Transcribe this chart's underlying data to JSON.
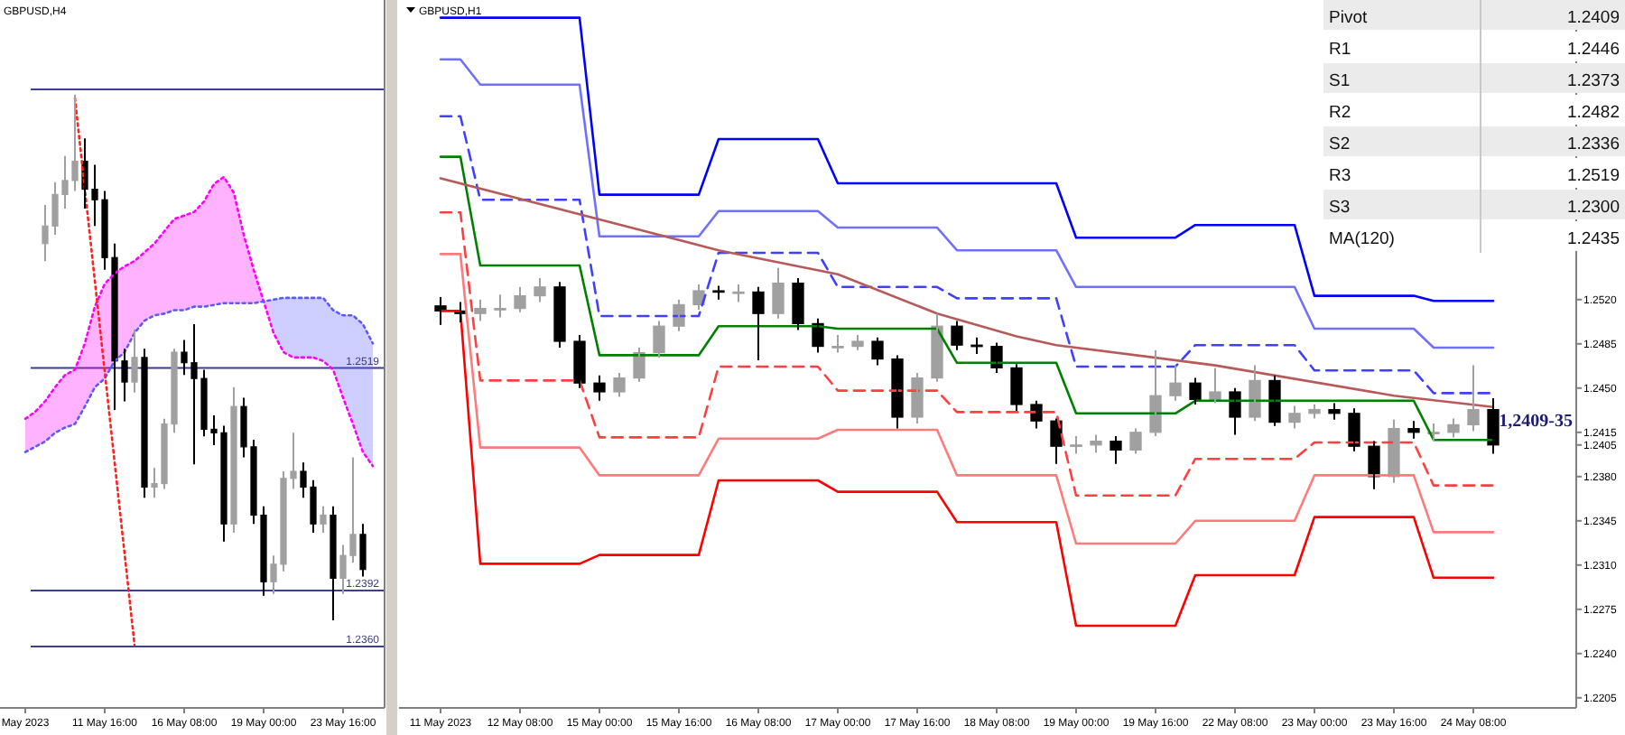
{
  "chart_data": [
    {
      "type": "candlestick",
      "title": "GBPUSD,H4",
      "tick_labels": "x",
      "ylim": [
        1.2325,
        1.2729
      ],
      "categories": [
        "May 2023",
        null,
        null,
        null,
        null,
        null,
        null,
        null,
        "11 May 16:00",
        null,
        null,
        null,
        null,
        null,
        null,
        null,
        "16 May 08:00",
        null,
        null,
        null,
        null,
        null,
        null,
        null,
        "19 May 00:00",
        null,
        null,
        null,
        null,
        null,
        null,
        null,
        "23 May 16:00",
        null,
        null,
        null
      ],
      "series": [
        {
          "type": "line",
          "color": "#ff00ff",
          "line_style": "dotted",
          "lower": [
            1.2471,
            1.2474,
            1.2477,
            1.2482,
            1.2485,
            1.2487,
            1.2497,
            1.2508,
            1.2513,
            1.2523,
            1.2528,
            1.2539,
            1.2546,
            1.2549,
            1.255,
            1.2552,
            1.2552,
            1.2554,
            1.2554,
            1.2555,
            1.2556,
            1.2556,
            1.2556,
            1.2556,
            1.2557,
            1.2558,
            1.2559,
            1.2559,
            1.2559,
            1.2559,
            1.2559,
            1.2552,
            1.2549,
            1.2549,
            1.2544,
            1.2533
          ],
          "upper": [
            1.249,
            1.2494,
            1.25,
            1.2508,
            1.2515,
            1.2518,
            1.2533,
            1.2554,
            1.2567,
            1.2573,
            1.2577,
            1.258,
            1.2585,
            1.259,
            1.2597,
            1.2604,
            1.2606,
            1.2608,
            1.2614,
            1.2624,
            1.2628,
            1.2619,
            1.2595,
            1.2575,
            1.2557,
            1.2539,
            1.2528,
            1.2525,
            1.2525,
            1.2525,
            1.2523,
            1.2518,
            1.2502,
            1.2487,
            1.2471,
            1.2463
          ],
          "values": [
            1.249,
            1.2494,
            1.25,
            1.2508,
            1.2515,
            1.2518,
            1.2533,
            1.2554,
            1.2567,
            1.2573,
            1.2577,
            1.258,
            1.2585,
            1.259,
            1.2597,
            1.2604,
            1.2606,
            1.2608,
            1.2614,
            1.2624,
            1.2628,
            1.2619,
            1.2595,
            1.2575,
            1.2557,
            1.2539,
            1.2528,
            1.2525,
            1.2525,
            1.2525,
            1.2523,
            1.2518,
            1.2502,
            1.2487,
            1.2471,
            1.2463
          ]
        },
        {
          "type": "line",
          "color": "#5a5aff",
          "line_style": "dotted",
          "values": [
            1.2471,
            1.2474,
            1.2477,
            1.2482,
            1.2485,
            1.2487,
            1.2497,
            1.2508,
            1.2513,
            1.2523,
            1.2528,
            1.2539,
            1.2546,
            1.2549,
            1.255,
            1.2552,
            1.2552,
            1.2554,
            1.2554,
            1.2555,
            1.2556,
            1.2556,
            1.2556,
            1.2556,
            1.2557,
            1.2558,
            1.2559,
            1.2559,
            1.2559,
            1.2559,
            1.2559,
            1.2552,
            1.2549,
            1.2549,
            1.2544,
            1.2533
          ]
        },
        {
          "type": "line",
          "color": "#ff2020",
          "line_style": "dotted",
          "values": [
            null,
            null,
            null,
            null,
            null,
            1.2673,
            null,
            null,
            null,
            null,
            null,
            1.2361,
            null,
            null,
            null,
            null,
            null,
            null,
            null,
            null,
            null,
            null,
            null,
            null,
            null,
            null,
            null,
            null,
            null,
            null,
            null,
            null,
            null,
            null,
            null,
            null
          ]
        },
        {
          "type": "candlestick",
          "colors": [
            null,
            null,
            "#a0a0a0",
            "#a0a0a0",
            "#a0a0a0",
            "#a0a0a0",
            "#000000",
            "#000000",
            "#000000",
            "#000000",
            "#000000",
            "#a0a0a0",
            "#000000",
            "#a0a0a0",
            "#a0a0a0",
            "#a0a0a0",
            "#000000",
            "#000000",
            "#000000",
            "#000000",
            "#000000",
            "#a0a0a0",
            "#000000",
            "#000000",
            "#000000",
            "#a0a0a0",
            "#a0a0a0",
            "#a0a0a0",
            "#000000",
            "#000000",
            "#a0a0a0",
            "#000000",
            "#a0a0a0",
            "#a0a0a0",
            "#000000",
            null
          ],
          "ohlc": [
            null,
            null,
            [
              1.259,
              1.2612,
              1.258,
              1.26
            ],
            [
              1.26,
              1.2625,
              1.2595,
              1.2618
            ],
            [
              1.2618,
              1.264,
              1.261,
              1.2626
            ],
            [
              1.2626,
              1.2675,
              1.262,
              1.2637
            ],
            [
              1.2637,
              1.265,
              1.261,
              1.2621
            ],
            [
              1.2621,
              1.2635,
              1.26,
              1.2615
            ],
            [
              1.2615,
              1.262,
              1.2575,
              1.2582
            ],
            [
              1.2582,
              1.259,
              1.2495,
              1.2523
            ],
            [
              1.2523,
              1.253,
              1.25,
              1.2511
            ],
            [
              1.2511,
              1.2541,
              1.2505,
              1.2525
            ],
            [
              1.2525,
              1.253,
              1.2445,
              1.2451
            ],
            [
              1.2451,
              1.2462,
              1.2445,
              1.2453
            ],
            [
              1.2453,
              1.249,
              1.245,
              1.2487
            ],
            [
              1.2487,
              1.253,
              1.2482,
              1.2528
            ],
            [
              1.2528,
              1.2535,
              1.2515,
              1.2522
            ],
            [
              1.2522,
              1.2544,
              1.2464,
              1.2513
            ],
            [
              1.2513,
              1.2518,
              1.248,
              1.2484
            ],
            [
              1.2484,
              1.2492,
              1.2475,
              1.2482
            ],
            [
              1.2482,
              1.2486,
              1.242,
              1.243
            ],
            [
              1.243,
              1.2508,
              1.2425,
              1.2497
            ],
            [
              1.2497,
              1.2502,
              1.2468,
              1.2474
            ],
            [
              1.2474,
              1.2478,
              1.243,
              1.2435
            ],
            [
              1.2435,
              1.244,
              1.2389,
              1.2397
            ],
            [
              1.2397,
              1.2412,
              1.239,
              1.2407
            ],
            [
              1.2407,
              1.246,
              1.2403,
              1.2456
            ],
            [
              1.2456,
              1.2482,
              1.245,
              1.246
            ],
            [
              1.246,
              1.2465,
              1.2445,
              1.2451
            ],
            [
              1.2451,
              1.2455,
              1.2425,
              1.243
            ],
            [
              1.243,
              1.244,
              1.2425,
              1.2435
            ],
            [
              1.2435,
              1.244,
              1.2375,
              1.2399
            ],
            [
              1.2399,
              1.2418,
              1.239,
              1.2412
            ],
            [
              1.2412,
              1.2468,
              1.2408,
              1.2424
            ],
            [
              1.2424,
              1.243,
              1.24,
              1.2404
            ],
            null
          ]
        }
      ],
      "ref_lines": [
        {
          "axis": "y",
          "value": 1.2678,
          "color": "#3c3c9a"
        },
        {
          "axis": "y",
          "value": 1.2519,
          "label": "1.2519",
          "color": "#3c3c9a"
        },
        {
          "axis": "y",
          "value": 1.2392,
          "label": "1.2392",
          "color": "#3c3c9a"
        },
        {
          "axis": "y",
          "value": 1.236,
          "label": "1.2360",
          "color": "#3c3c9a"
        }
      ]
    },
    {
      "type": "candlestick",
      "title": "GBPUSD,H1",
      "ylim": [
        1.2197,
        1.2757
      ],
      "yticks": [
        {
          "value": 1.2205,
          "label": "1.2205"
        },
        {
          "value": 1.224,
          "label": "1.2240"
        },
        {
          "value": 1.2275,
          "label": "1.2275"
        },
        {
          "value": 1.231,
          "label": "1.2310"
        },
        {
          "value": 1.2345,
          "label": "1.2345"
        },
        {
          "value": 1.238,
          "label": "1.2380"
        },
        {
          "value": 1.2405,
          "label": "1.2405"
        },
        {
          "value": 1.2415,
          "label": "1.2415"
        },
        {
          "value": 1.245,
          "label": "1.2450"
        },
        {
          "value": 1.2485,
          "label": "1.2485"
        },
        {
          "value": 1.252,
          "label": "1.2520"
        }
      ],
      "categories": [
        "11 May 2023",
        null,
        null,
        null,
        "12 May 08:00",
        null,
        null,
        null,
        "15 May 00:00",
        null,
        null,
        null,
        "15 May 16:00",
        null,
        null,
        null,
        "16 May 08:00",
        null,
        null,
        null,
        "17 May 00:00",
        null,
        null,
        null,
        "17 May 16:00",
        null,
        null,
        null,
        "18 May 08:00",
        null,
        null,
        null,
        "19 May 00:00",
        null,
        null,
        null,
        "19 May 16:00",
        null,
        null,
        null,
        "22 May 08:00",
        null,
        null,
        null,
        "23 May 00:00",
        null,
        null,
        null,
        "23 May 16:00",
        null,
        null,
        null,
        "24 May 08:00",
        null
      ],
      "series": [
        {
          "type": "line",
          "color": "#0000ff",
          "values": [
            1.2743,
            1.2743,
            1.2743,
            1.2743,
            1.2743,
            1.2743,
            1.2743,
            1.2743,
            1.2603,
            1.2603,
            1.2603,
            1.2603,
            1.2603,
            1.2603,
            1.2647,
            1.2647,
            1.2647,
            1.2647,
            1.2647,
            1.2647,
            1.2612,
            1.2612,
            1.2612,
            1.2612,
            1.2612,
            1.2612,
            1.2612,
            1.2612,
            1.2612,
            1.2612,
            1.2612,
            1.2612,
            1.2569,
            1.2569,
            1.2569,
            1.2569,
            1.2569,
            1.2569,
            1.2579,
            1.2579,
            1.2579,
            1.2579,
            1.2579,
            1.2579,
            1.2523,
            1.2523,
            1.2523,
            1.2523,
            1.2523,
            1.2523,
            1.2519,
            1.2519,
            1.2519,
            1.2519
          ]
        },
        {
          "type": "line",
          "color": "#7070ff",
          "values": [
            1.271,
            1.271,
            1.269,
            1.269,
            1.269,
            1.269,
            1.269,
            1.269,
            1.257,
            1.257,
            1.257,
            1.257,
            1.257,
            1.257,
            1.259,
            1.259,
            1.259,
            1.259,
            1.259,
            1.259,
            1.2577,
            1.2577,
            1.2577,
            1.2577,
            1.2577,
            1.2577,
            1.2559,
            1.2559,
            1.2559,
            1.2559,
            1.2559,
            1.2559,
            1.253,
            1.253,
            1.253,
            1.253,
            1.253,
            1.253,
            1.253,
            1.253,
            1.253,
            1.253,
            1.253,
            1.253,
            1.2497,
            1.2497,
            1.2497,
            1.2497,
            1.2497,
            1.2497,
            1.2482,
            1.2482,
            1.2482,
            1.2482
          ]
        },
        {
          "type": "line",
          "color": "#4040ff",
          "line_style": "dashed",
          "values": [
            1.2665,
            1.2665,
            1.2599,
            1.2599,
            1.2599,
            1.2599,
            1.2599,
            1.2599,
            1.2507,
            1.2507,
            1.2507,
            1.2507,
            1.2507,
            1.2507,
            1.2557,
            1.2557,
            1.2557,
            1.2557,
            1.2557,
            1.2557,
            1.253,
            1.253,
            1.253,
            1.253,
            1.253,
            1.253,
            1.2521,
            1.2521,
            1.2521,
            1.2521,
            1.2521,
            1.2521,
            1.2467,
            1.2467,
            1.2467,
            1.2467,
            1.2467,
            1.2467,
            1.2484,
            1.2484,
            1.2484,
            1.2484,
            1.2484,
            1.2484,
            1.2464,
            1.2464,
            1.2464,
            1.2464,
            1.2464,
            1.2464,
            1.2446,
            1.2446,
            1.2446,
            1.2446
          ]
        },
        {
          "type": "line",
          "color": "#008000",
          "values": [
            1.2633,
            1.2633,
            1.2547,
            1.2547,
            1.2547,
            1.2547,
            1.2547,
            1.2547,
            1.2476,
            1.2476,
            1.2476,
            1.2476,
            1.2476,
            1.2476,
            1.2499,
            1.2499,
            1.2499,
            1.2499,
            1.2499,
            1.2499,
            1.2497,
            1.2497,
            1.2497,
            1.2497,
            1.2497,
            1.2497,
            1.247,
            1.247,
            1.247,
            1.247,
            1.247,
            1.247,
            1.243,
            1.243,
            1.243,
            1.243,
            1.243,
            1.243,
            1.244,
            1.244,
            1.244,
            1.244,
            1.244,
            1.244,
            1.244,
            1.244,
            1.244,
            1.244,
            1.244,
            1.244,
            1.2409,
            1.2409,
            1.2409,
            1.2409
          ]
        },
        {
          "type": "line",
          "color": "#ff4040",
          "line_style": "dashed",
          "values": [
            1.2589,
            1.2589,
            1.2456,
            1.2456,
            1.2456,
            1.2456,
            1.2456,
            1.2456,
            1.2411,
            1.2411,
            1.2411,
            1.2411,
            1.2411,
            1.2411,
            1.2467,
            1.2467,
            1.2467,
            1.2467,
            1.2467,
            1.2467,
            1.2448,
            1.2448,
            1.2448,
            1.2448,
            1.2448,
            1.2448,
            1.2431,
            1.2431,
            1.2431,
            1.2431,
            1.2431,
            1.2431,
            1.2365,
            1.2365,
            1.2365,
            1.2365,
            1.2365,
            1.2365,
            1.2394,
            1.2394,
            1.2394,
            1.2394,
            1.2394,
            1.2394,
            1.2407,
            1.2407,
            1.2407,
            1.2407,
            1.2407,
            1.2407,
            1.2373,
            1.2373,
            1.2373,
            1.2373
          ]
        },
        {
          "type": "line",
          "color": "#ff7a7a",
          "values": [
            1.2556,
            1.2556,
            1.2403,
            1.2403,
            1.2403,
            1.2403,
            1.2403,
            1.2403,
            1.2381,
            1.2381,
            1.2381,
            1.2381,
            1.2381,
            1.2381,
            1.241,
            1.241,
            1.241,
            1.241,
            1.241,
            1.241,
            1.2417,
            1.2417,
            1.2417,
            1.2417,
            1.2417,
            1.2417,
            1.2381,
            1.2381,
            1.2381,
            1.2381,
            1.2381,
            1.2381,
            1.2327,
            1.2327,
            1.2327,
            1.2327,
            1.2327,
            1.2327,
            1.2345,
            1.2345,
            1.2345,
            1.2345,
            1.2345,
            1.2345,
            1.2381,
            1.2381,
            1.2381,
            1.2381,
            1.2381,
            1.2381,
            1.2336,
            1.2336,
            1.2336,
            1.2336
          ]
        },
        {
          "type": "line",
          "color": "#ff0000",
          "values": [
            1.2511,
            1.2511,
            1.2311,
            1.2311,
            1.2311,
            1.2311,
            1.2311,
            1.2311,
            1.2318,
            1.2318,
            1.2318,
            1.2318,
            1.2318,
            1.2318,
            1.2377,
            1.2377,
            1.2377,
            1.2377,
            1.2377,
            1.2377,
            1.2368,
            1.2368,
            1.2368,
            1.2368,
            1.2368,
            1.2368,
            1.2344,
            1.2344,
            1.2344,
            1.2344,
            1.2344,
            1.2344,
            1.2262,
            1.2262,
            1.2262,
            1.2262,
            1.2262,
            1.2262,
            1.2302,
            1.2302,
            1.2302,
            1.2302,
            1.2302,
            1.2302,
            1.2348,
            1.2348,
            1.2348,
            1.2348,
            1.2348,
            1.2348,
            1.23,
            1.23,
            1.23,
            1.23
          ]
        },
        {
          "type": "line",
          "color": "#b85a5a",
          "values": [
            1.2616,
            null,
            null,
            null,
            null,
            null,
            null,
            null,
            null,
            null,
            null,
            null,
            null,
            null,
            1.2559,
            null,
            null,
            null,
            null,
            null,
            1.254,
            null,
            null,
            null,
            null,
            1.2509,
            null,
            null,
            null,
            1.2491,
            null,
            1.2484,
            null,
            null,
            null,
            null,
            null,
            null,
            null,
            1.2468,
            null,
            null,
            null,
            null,
            null,
            null,
            null,
            null,
            1.2444,
            null,
            null,
            null,
            null,
            1.2435
          ]
        },
        {
          "type": "candlestick",
          "colors": [
            "#000000",
            "#000000",
            "#a0a0a0",
            "#a0a0a0",
            "#a0a0a0",
            "#a0a0a0",
            "#000000",
            "#000000",
            "#000000",
            "#a0a0a0",
            "#a0a0a0",
            "#a0a0a0",
            "#a0a0a0",
            "#a0a0a0",
            "#000000",
            "#a0a0a0",
            "#000000",
            "#a0a0a0",
            "#000000",
            "#000000",
            "#a0a0a0",
            "#a0a0a0",
            "#000000",
            "#000000",
            "#a0a0a0",
            "#a0a0a0",
            "#000000",
            "#000000",
            "#000000",
            "#000000",
            "#000000",
            "#000000",
            "#a0a0a0",
            "#a0a0a0",
            "#000000",
            "#a0a0a0",
            "#a0a0a0",
            "#a0a0a0",
            "#000000",
            "#a0a0a0",
            "#000000",
            "#a0a0a0",
            "#000000",
            "#a0a0a0",
            "#a0a0a0",
            "#000000",
            "#000000",
            "#000000",
            "#a0a0a0",
            "#000000",
            "#a0a0a0",
            "#a0a0a0",
            "#a0a0a0",
            "#000000"
          ],
          "ohlc": [
            [
              1.2515,
              1.2522,
              1.25,
              1.2511
            ],
            [
              1.2511,
              1.2518,
              1.2502,
              1.2509
            ],
            [
              1.2509,
              1.252,
              1.2503,
              1.2513
            ],
            [
              1.2513,
              1.2524,
              1.2506,
              1.2513
            ],
            [
              1.2513,
              1.253,
              1.251,
              1.2523
            ],
            [
              1.2523,
              1.2537,
              1.2518,
              1.253
            ],
            [
              1.253,
              1.2534,
              1.2482,
              1.2487
            ],
            [
              1.2487,
              1.2492,
              1.245,
              1.2454
            ],
            [
              1.2454,
              1.246,
              1.244,
              1.2447
            ],
            [
              1.2447,
              1.2462,
              1.2443,
              1.2458
            ],
            [
              1.2458,
              1.2482,
              1.2455,
              1.2478
            ],
            [
              1.2478,
              1.2503,
              1.2474,
              1.2499
            ],
            [
              1.2499,
              1.252,
              1.2495,
              1.2516
            ],
            [
              1.2516,
              1.2532,
              1.2512,
              1.2527
            ],
            [
              1.2527,
              1.2531,
              1.252,
              1.2526
            ],
            [
              1.2526,
              1.2532,
              1.2518,
              1.2526
            ],
            [
              1.2526,
              1.253,
              1.2472,
              1.2509
            ],
            [
              1.2509,
              1.2545,
              1.2505,
              1.2533
            ],
            [
              1.2533,
              1.2537,
              1.2496,
              1.2501
            ],
            [
              1.2501,
              1.2505,
              1.2478,
              1.2483
            ],
            [
              1.2483,
              1.2492,
              1.2478,
              1.2483
            ],
            [
              1.2483,
              1.2492,
              1.248,
              1.2487
            ],
            [
              1.2487,
              1.249,
              1.2468,
              1.2473
            ],
            [
              1.2473,
              1.2476,
              1.2418,
              1.2427
            ],
            [
              1.2427,
              1.2462,
              1.2422,
              1.2458
            ],
            [
              1.2458,
              1.2509,
              1.2455,
              1.2499
            ],
            [
              1.2499,
              1.2503,
              1.248,
              1.2484
            ],
            [
              1.2484,
              1.249,
              1.2477,
              1.2483
            ],
            [
              1.2483,
              1.2486,
              1.2462,
              1.2466
            ],
            [
              1.2466,
              1.2469,
              1.2432,
              1.2437
            ],
            [
              1.2437,
              1.244,
              1.2418,
              1.2424
            ],
            [
              1.2424,
              1.2426,
              1.239,
              1.2404
            ],
            [
              1.2404,
              1.2412,
              1.2398,
              1.2405
            ],
            [
              1.2405,
              1.2413,
              1.2399,
              1.2408
            ],
            [
              1.2408,
              1.2412,
              1.239,
              1.2401
            ],
            [
              1.2401,
              1.2418,
              1.2398,
              1.2415
            ],
            [
              1.2415,
              1.248,
              1.2412,
              1.2444
            ],
            [
              1.2444,
              1.2468,
              1.244,
              1.2454
            ],
            [
              1.2454,
              1.2458,
              1.2437,
              1.2441
            ],
            [
              1.2441,
              1.2466,
              1.2438,
              1.2447
            ],
            [
              1.2447,
              1.245,
              1.2413,
              1.2427
            ],
            [
              1.2427,
              1.2468,
              1.2424,
              1.2456
            ],
            [
              1.2456,
              1.246,
              1.242,
              1.2423
            ],
            [
              1.2423,
              1.2436,
              1.2418,
              1.243
            ],
            [
              1.243,
              1.2437,
              1.2426,
              1.2433
            ],
            [
              1.2433,
              1.2438,
              1.2425,
              1.243
            ],
            [
              1.243,
              1.2434,
              1.24,
              1.2404
            ],
            [
              1.2404,
              1.2408,
              1.237,
              1.238
            ],
            [
              1.238,
              1.2425,
              1.2375,
              1.2418
            ],
            [
              1.2418,
              1.2424,
              1.241,
              1.2415
            ],
            [
              1.2415,
              1.2422,
              1.2408,
              1.2415
            ],
            [
              1.2415,
              1.2426,
              1.2411,
              1.2421
            ],
            [
              1.2421,
              1.2468,
              1.2416,
              1.2433
            ],
            [
              1.2433,
              1.2442,
              1.2398,
              1.2405
            ]
          ]
        }
      ],
      "annotations": [
        "1,2409-35"
      ]
    },
    {
      "type": "other",
      "categories": [
        "Pivot",
        "R1",
        "S1",
        "R2",
        "S2",
        "R3",
        "S3",
        "MA(120)"
      ],
      "values": [
        1.2409,
        1.2446,
        1.2373,
        1.2482,
        1.2336,
        1.2519,
        1.23,
        1.2435
      ],
      "value_labels": [
        "1.2409",
        "1.2446",
        "1.2373",
        "1.2482",
        "1.2336",
        "1.2519",
        "1.2300",
        "1.2435"
      ]
    }
  ]
}
